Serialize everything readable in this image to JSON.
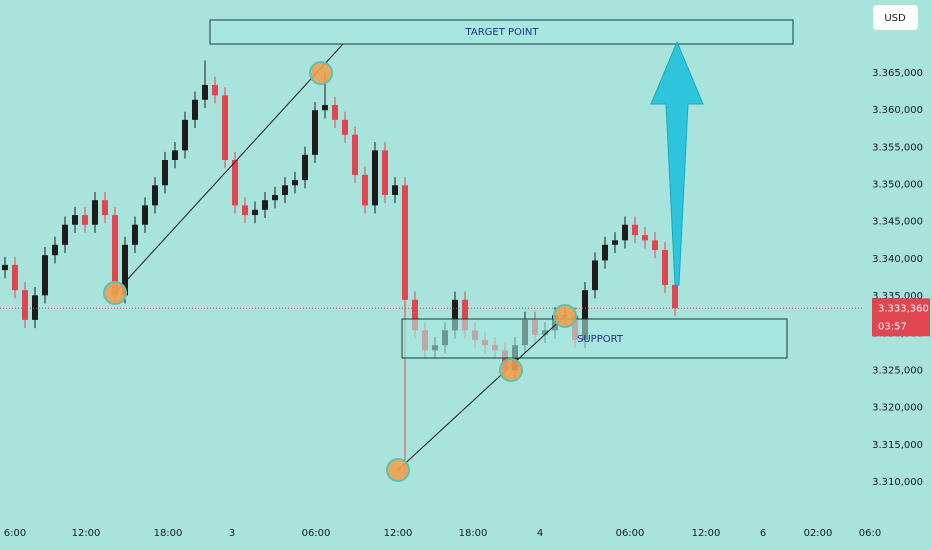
{
  "chart_data": {
    "type": "candlestick",
    "currency": "USD",
    "up_color": "#1c1c1c",
    "down_color": "#e0464f",
    "open": [
      3.3385,
      3.3392,
      3.3358,
      3.3318,
      3.3351,
      3.3405,
      3.3419,
      3.3446,
      3.3459,
      3.3446,
      3.3479,
      3.3459,
      3.3351,
      3.3419,
      3.3446,
      3.3472,
      3.3499,
      3.3533,
      3.3546,
      3.3587,
      3.3614,
      3.3634,
      3.362,
      3.3533,
      3.3472,
      3.3459,
      3.3466,
      3.3479,
      3.3486,
      3.3499,
      3.3506,
      3.354,
      3.36,
      3.3607,
      3.3587,
      3.3567,
      3.3513,
      3.3472,
      3.3546,
      3.3486,
      3.3499,
      3.3345,
      3.3304,
      3.3277,
      3.3284,
      3.3304,
      3.3345,
      3.3304,
      3.3291,
      3.3284,
      3.3277,
      3.325,
      3.3284,
      3.3318,
      3.3298,
      3.3304,
      3.3324,
      3.3324,
      3.3291,
      3.3358,
      3.3398,
      3.3419,
      3.3425,
      3.3446,
      3.3432,
      3.3425,
      3.3412,
      3.3365
    ],
    "high": [
      3.3403,
      3.3403,
      3.3369,
      3.3362,
      3.3416,
      3.343,
      3.3457,
      3.347,
      3.347,
      3.349,
      3.349,
      3.347,
      3.343,
      3.3457,
      3.3483,
      3.351,
      3.3544,
      3.3557,
      3.3598,
      3.3625,
      3.3667,
      3.3645,
      3.3631,
      3.3544,
      3.3483,
      3.3477,
      3.349,
      3.3497,
      3.351,
      3.3517,
      3.3551,
      3.3611,
      3.365,
      3.3618,
      3.3598,
      3.3578,
      3.3524,
      3.3557,
      3.3557,
      3.351,
      3.351,
      3.3356,
      3.3315,
      3.3295,
      3.3315,
      3.3356,
      3.3356,
      3.3315,
      3.3302,
      3.3295,
      3.3288,
      3.3295,
      3.3329,
      3.3329,
      3.3315,
      3.3335,
      3.3335,
      3.3335,
      3.3369,
      3.3409,
      3.343,
      3.3436,
      3.3457,
      3.3457,
      3.3443,
      3.3436,
      3.3423,
      3.3376
    ],
    "low": [
      3.3374,
      3.3347,
      3.3307,
      3.3307,
      3.334,
      3.3394,
      3.3408,
      3.3435,
      3.3435,
      3.3435,
      3.3448,
      3.334,
      3.334,
      3.3408,
      3.3435,
      3.3461,
      3.3488,
      3.3522,
      3.3535,
      3.3576,
      3.3603,
      3.3609,
      3.3522,
      3.3461,
      3.3448,
      3.3448,
      3.3455,
      3.3468,
      3.3475,
      3.3488,
      3.3495,
      3.3529,
      3.3589,
      3.3576,
      3.3556,
      3.3502,
      3.3461,
      3.3461,
      3.3475,
      3.3475,
      3.3114,
      3.3293,
      3.3266,
      3.3266,
      3.3273,
      3.3293,
      3.3293,
      3.328,
      3.3273,
      3.3266,
      3.3239,
      3.3239,
      3.3273,
      3.3287,
      3.3287,
      3.3293,
      3.3313,
      3.328,
      3.328,
      3.3347,
      3.3387,
      3.3408,
      3.3414,
      3.3421,
      3.3414,
      3.3401,
      3.3354,
      3.3323
    ],
    "close": [
      3.3392,
      3.3358,
      3.3318,
      3.3351,
      3.3405,
      3.3419,
      3.3446,
      3.3459,
      3.3446,
      3.3479,
      3.3459,
      3.3351,
      3.3419,
      3.3446,
      3.3472,
      3.3499,
      3.3533,
      3.3546,
      3.3587,
      3.3614,
      3.3634,
      3.362,
      3.3533,
      3.3472,
      3.3459,
      3.3466,
      3.3479,
      3.3486,
      3.3499,
      3.3506,
      3.354,
      3.36,
      3.3607,
      3.3587,
      3.3567,
      3.3513,
      3.3472,
      3.3546,
      3.3486,
      3.3499,
      3.3345,
      3.3304,
      3.3277,
      3.3284,
      3.3304,
      3.3345,
      3.3304,
      3.3291,
      3.3284,
      3.3277,
      3.325,
      3.3284,
      3.3318,
      3.3298,
      3.3304,
      3.3324,
      3.3324,
      3.3291,
      3.3358,
      3.3398,
      3.3419,
      3.3425,
      3.3446,
      3.3432,
      3.3425,
      3.3412,
      3.3365,
      3.3334
    ],
    "ylim": [
      3.30489,
      3.37482
    ],
    "yticks": [
      {
        "value": 3.31,
        "label": "3.310,000"
      },
      {
        "value": 3.315,
        "label": "3.315,000"
      },
      {
        "value": 3.32,
        "label": "3.320,000"
      },
      {
        "value": 3.325,
        "label": "3.325,000"
      },
      {
        "value": 3.33,
        "label": "3.330,000"
      },
      {
        "value": 3.335,
        "label": "3.335,000"
      },
      {
        "value": 3.34,
        "label": "3.340,000"
      },
      {
        "value": 3.345,
        "label": "3.345,000"
      },
      {
        "value": 3.35,
        "label": "3.350,000"
      },
      {
        "value": 3.355,
        "label": "3.355,000"
      },
      {
        "value": 3.36,
        "label": "3.360,000"
      },
      {
        "value": 3.365,
        "label": "3.365,000"
      }
    ],
    "xlim": [
      -0.5,
      92.7
    ],
    "xticks": [
      {
        "value": 1.0,
        "label": "6:00"
      },
      {
        "value": 8.1,
        "label": "12:00"
      },
      {
        "value": 16.3,
        "label": "18:00"
      },
      {
        "value": 22.7,
        "label": "3"
      },
      {
        "value": 31.1,
        "label": "06:00"
      },
      {
        "value": 39.3,
        "label": "12:00"
      },
      {
        "value": 46.8,
        "label": "18:00"
      },
      {
        "value": 53.5,
        "label": "4"
      },
      {
        "value": 62.5,
        "label": "06:00"
      },
      {
        "value": 70.1,
        "label": "12:00"
      },
      {
        "value": 75.8,
        "label": "6"
      },
      {
        "value": 81.3,
        "label": "02:00"
      },
      {
        "value": 86.5,
        "label": "06:0"
      }
    ],
    "last_price": {
      "value": 3.33336,
      "label": "3.333,360"
    },
    "countdown": "03:57",
    "annotations": {
      "target": "TARGET POINT",
      "support": "SUPPORT"
    }
  }
}
